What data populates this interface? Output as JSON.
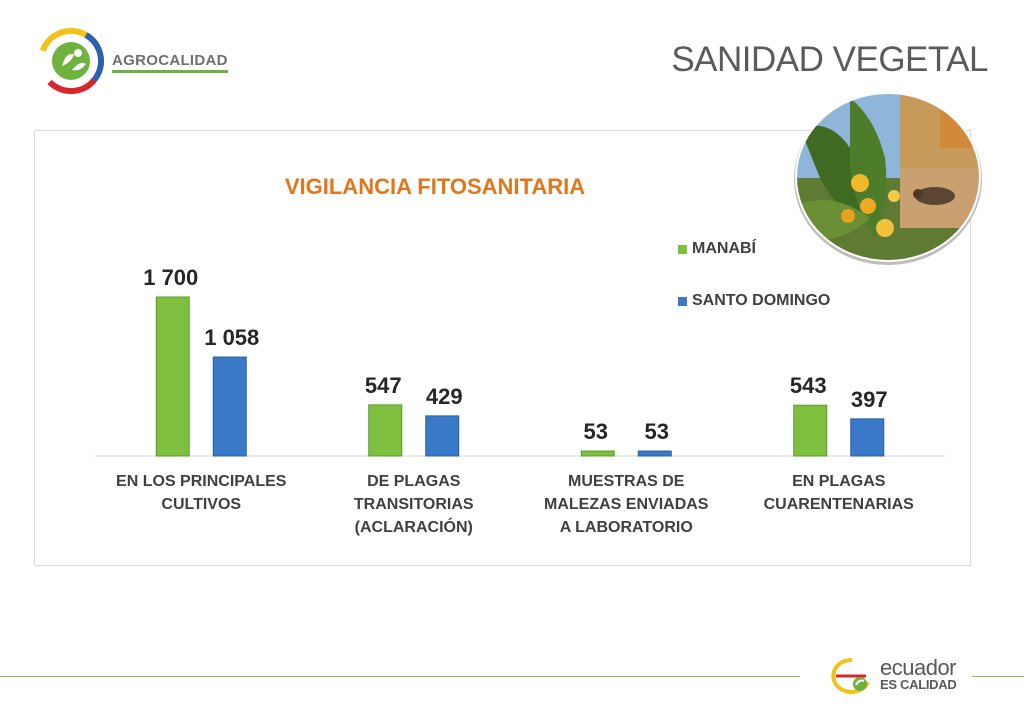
{
  "header": {
    "logo_text": "AGROCALIDAD",
    "page_title": "SANIDAD VEGETAL"
  },
  "footer": {
    "brand_line1": "ecuador",
    "brand_line2": "ES CALIDAD"
  },
  "colors": {
    "title": "#e2761c",
    "manabi": "#7fbf3f",
    "santo_domingo": "#3a78c8",
    "text": "#404040"
  },
  "chart_data": {
    "type": "bar",
    "title": "VIGILANCIA FITOSANITARIA",
    "categories": [
      [
        "EN LOS PRINCIPALES",
        "CULTIVOS"
      ],
      [
        "DE PLAGAS",
        "TRANSITORIAS",
        "(ACLARACIÓN)"
      ],
      [
        "MUESTRAS DE",
        "MALEZAS ENVIADAS",
        "A LABORATORIO"
      ],
      [
        "EN PLAGAS",
        "CUARENTENARIAS"
      ]
    ],
    "series": [
      {
        "name": "MANABÍ",
        "values": [
          1700,
          547,
          53,
          543
        ],
        "labels": [
          "1 700",
          "547",
          "53",
          "543"
        ]
      },
      {
        "name": "SANTO DOMINGO",
        "values": [
          1058,
          429,
          53,
          397
        ],
        "labels": [
          "1 058",
          "429",
          "53",
          "397"
        ]
      }
    ],
    "ylim": [
      0,
      1800
    ],
    "legend": "right",
    "grid": false
  }
}
